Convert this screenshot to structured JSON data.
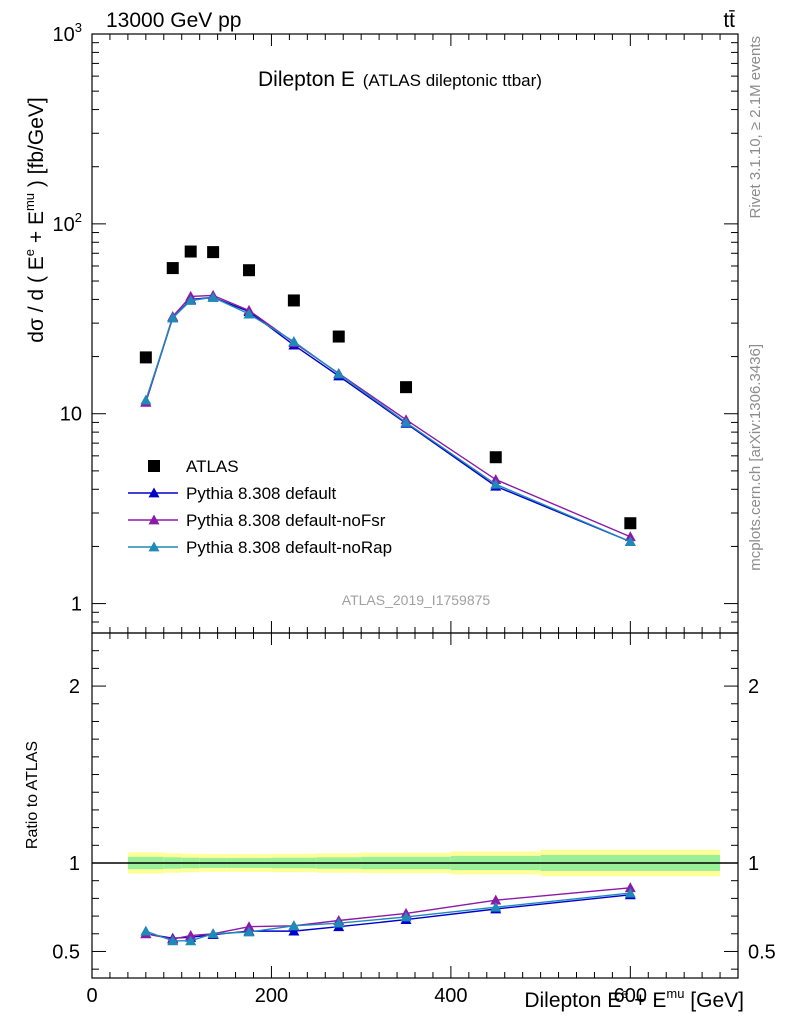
{
  "header": {
    "energy_label": "13000 GeV pp",
    "process_label": "tt̄",
    "analysis_id": "ATLAS_2019_I1759875",
    "rivet_label": "Rivet 3.1.10, ≥ 2.1M events",
    "site_label": "mcplots.cern.ch [arXiv:1306.3436]"
  },
  "chart_data": [
    {
      "type": "scatter",
      "title": "Dilepton E",
      "subtitle": "(ATLAS dileptonic ttbar)",
      "ylabel": "dσ / d ( E + E ) [fb/GeV]",
      "ylabel_parts": {
        "pre": "dσ / d ( E",
        "sup1": "e",
        "mid": " + E",
        "sup2": "mu",
        "post": " ) [fb/GeV]"
      },
      "yscale": "log",
      "xlim": [
        0,
        720
      ],
      "ylim": [
        0.7,
        1000
      ],
      "yticks": [
        {
          "value": 1,
          "label": "1"
        },
        {
          "value": 10,
          "label": "10"
        },
        {
          "value": 100,
          "label": "10",
          "sup": "2"
        },
        {
          "value": 1000,
          "label": "10",
          "sup": "3"
        }
      ],
      "legend_position": "lower-left",
      "series": [
        {
          "name": "ATLAS",
          "color": "#000000",
          "marker": "square",
          "x": [
            60,
            90,
            110,
            135,
            175,
            225,
            275,
            350,
            450,
            600
          ],
          "values": [
            19.8,
            58.5,
            71.5,
            71.0,
            57.0,
            39.5,
            25.5,
            13.8,
            5.9,
            2.65
          ]
        },
        {
          "name": "Pythia 8.308 default",
          "color": "#0000cc",
          "marker": "triangle",
          "x": [
            60,
            90,
            110,
            135,
            175,
            225,
            275,
            350,
            450,
            600
          ],
          "values": [
            11.5,
            32.0,
            40.0,
            41.0,
            34.5,
            23.0,
            15.8,
            8.9,
            4.15,
            2.12
          ]
        },
        {
          "name": "Pythia 8.308 default-noFsr",
          "color": "#8b1aa8",
          "marker": "triangle",
          "x": [
            60,
            90,
            110,
            135,
            175,
            225,
            275,
            350,
            450,
            600
          ],
          "values": [
            11.5,
            32.5,
            41.5,
            42.0,
            35.0,
            23.7,
            16.3,
            9.3,
            4.5,
            2.25
          ]
        },
        {
          "name": "Pythia 8.308 default-noRap",
          "color": "#1f89b8",
          "marker": "triangle",
          "x": [
            60,
            90,
            110,
            135,
            175,
            225,
            275,
            350,
            450,
            600
          ],
          "values": [
            11.8,
            32.0,
            39.5,
            41.0,
            33.5,
            24.0,
            16.2,
            9.0,
            4.25,
            2.12
          ]
        }
      ]
    },
    {
      "type": "line",
      "ylabel": "Ratio to ATLAS",
      "xlabel": "Dilepton E + E [GeV]",
      "xlabel_parts": {
        "pre": "Dilepton E",
        "sup1": "e",
        "mid": " + E",
        "sup2": "mu",
        "post": " [GeV]"
      },
      "xlim": [
        0,
        720
      ],
      "ylim": [
        0.35,
        2.3
      ],
      "xticks": [
        {
          "value": 0,
          "label": "0"
        },
        {
          "value": 200,
          "label": "200"
        },
        {
          "value": 400,
          "label": "400"
        },
        {
          "value": 600,
          "label": "600"
        }
      ],
      "yticks": [
        {
          "value": 0.5,
          "label": "0.5"
        },
        {
          "value": 1,
          "label": "1"
        },
        {
          "value": 2,
          "label": "2"
        }
      ],
      "reference_line": 1,
      "uncertainty_bands": {
        "edges": [
          40,
          80,
          100,
          120,
          150,
          200,
          250,
          300,
          400,
          500,
          700
        ],
        "total_lo": [
          0.94,
          0.945,
          0.948,
          0.95,
          0.95,
          0.948,
          0.945,
          0.942,
          0.935,
          0.925
        ],
        "total_hi": [
          1.06,
          1.055,
          1.052,
          1.05,
          1.05,
          1.052,
          1.055,
          1.058,
          1.065,
          1.075
        ],
        "stat_lo": [
          0.965,
          0.968,
          0.97,
          0.972,
          0.972,
          0.97,
          0.968,
          0.965,
          0.96,
          0.955
        ],
        "stat_hi": [
          1.035,
          1.032,
          1.03,
          1.028,
          1.028,
          1.03,
          1.032,
          1.035,
          1.04,
          1.045
        ],
        "total_color": "#ffff99",
        "stat_color": "#99f099"
      },
      "series": [
        {
          "name": "Pythia 8.308 default",
          "color": "#0000cc",
          "x": [
            60,
            90,
            110,
            135,
            175,
            225,
            275,
            350,
            450,
            600
          ],
          "values": [
            0.6,
            0.575,
            0.58,
            0.595,
            0.615,
            0.615,
            0.64,
            0.68,
            0.74,
            0.82
          ]
        },
        {
          "name": "Pythia 8.308 default-noFsr",
          "color": "#8b1aa8",
          "x": [
            60,
            90,
            110,
            135,
            175,
            225,
            275,
            350,
            450,
            600
          ],
          "values": [
            0.6,
            0.57,
            0.59,
            0.6,
            0.64,
            0.645,
            0.675,
            0.715,
            0.79,
            0.86
          ]
        },
        {
          "name": "Pythia 8.308 default-noRap",
          "color": "#1f89b8",
          "x": [
            60,
            90,
            110,
            135,
            175,
            225,
            275,
            350,
            450,
            600
          ],
          "values": [
            0.615,
            0.56,
            0.56,
            0.6,
            0.61,
            0.645,
            0.66,
            0.695,
            0.75,
            0.83
          ]
        }
      ]
    }
  ]
}
